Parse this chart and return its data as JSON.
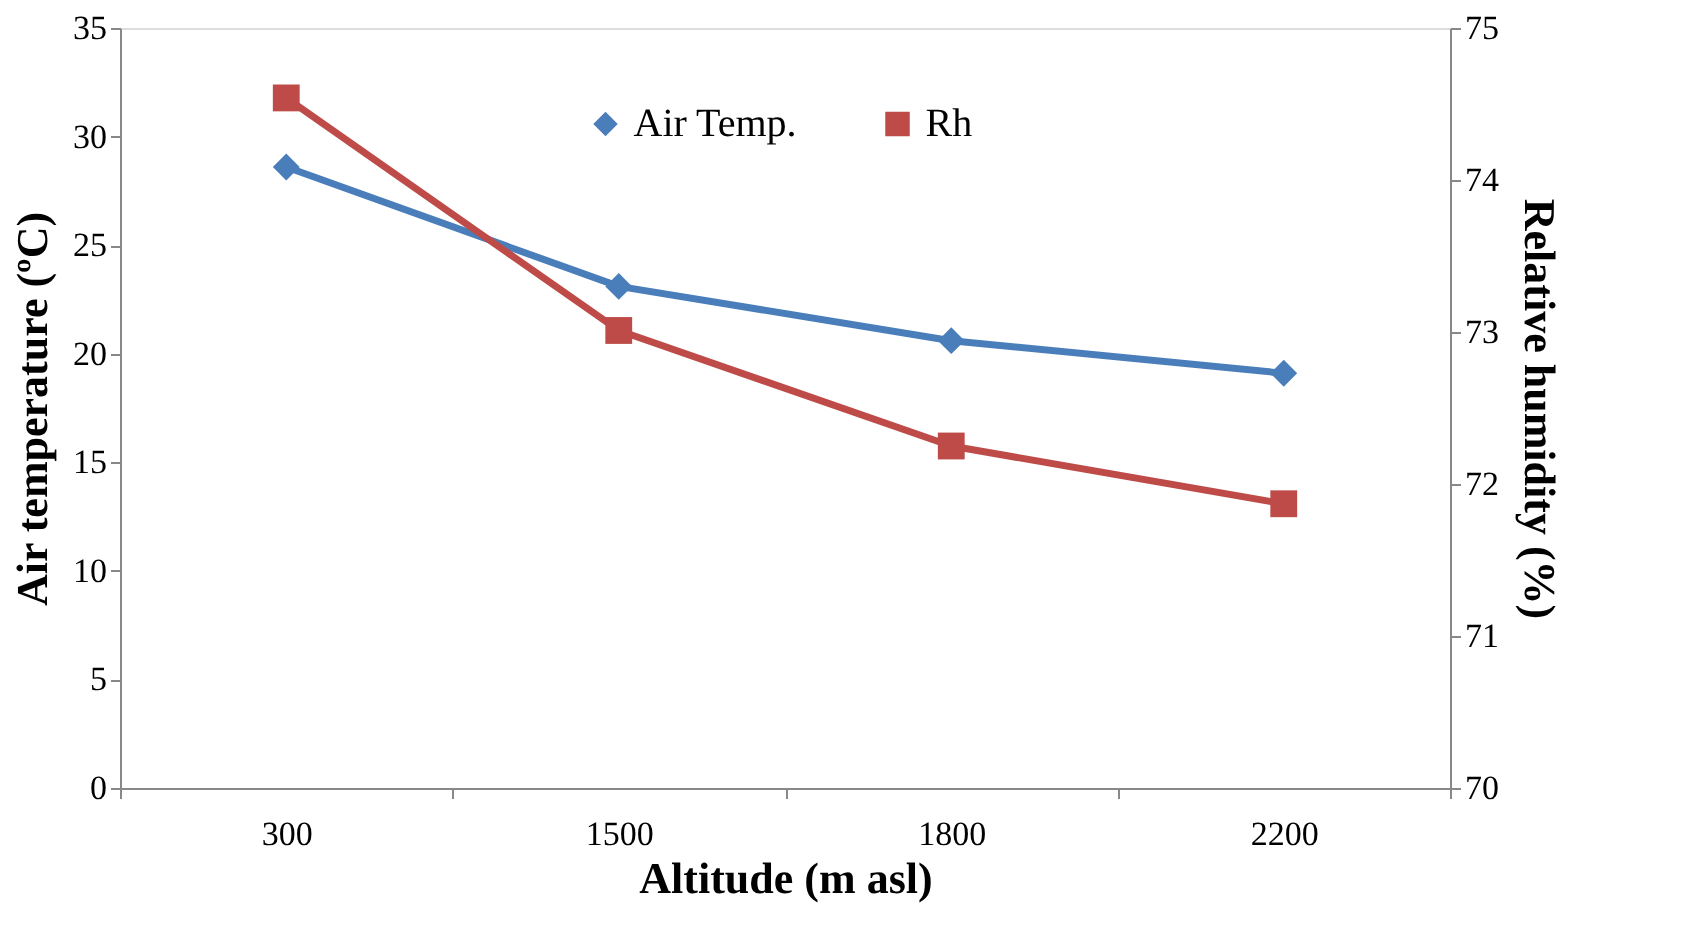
{
  "chart_data": {
    "type": "line",
    "xlabel": "Altitude (m asl)",
    "ylabel": "Air temperature (ºC)",
    "y2label": "Relative humidity (%)",
    "categories": [
      "300",
      "1500",
      "1800",
      "2200"
    ],
    "series": [
      {
        "name": "Air Temp.",
        "color": "#4a7ebb",
        "marker": "diamond",
        "values": [
          28.6,
          23.1,
          20.6,
          19.1
        ]
      },
      {
        "name": "Rh",
        "color": "#be4b48",
        "marker": "square",
        "axis": "y2",
        "values": [
          74.54,
          73.01,
          72.25,
          71.87
        ]
      }
    ],
    "ylim": [
      0,
      35
    ],
    "yticks": [
      0,
      5,
      10,
      15,
      20,
      25,
      30,
      35
    ],
    "y2lim": [
      70,
      75
    ],
    "y2ticks": [
      70,
      71,
      72,
      73,
      74,
      75
    ],
    "grid": false,
    "legend": "top"
  }
}
